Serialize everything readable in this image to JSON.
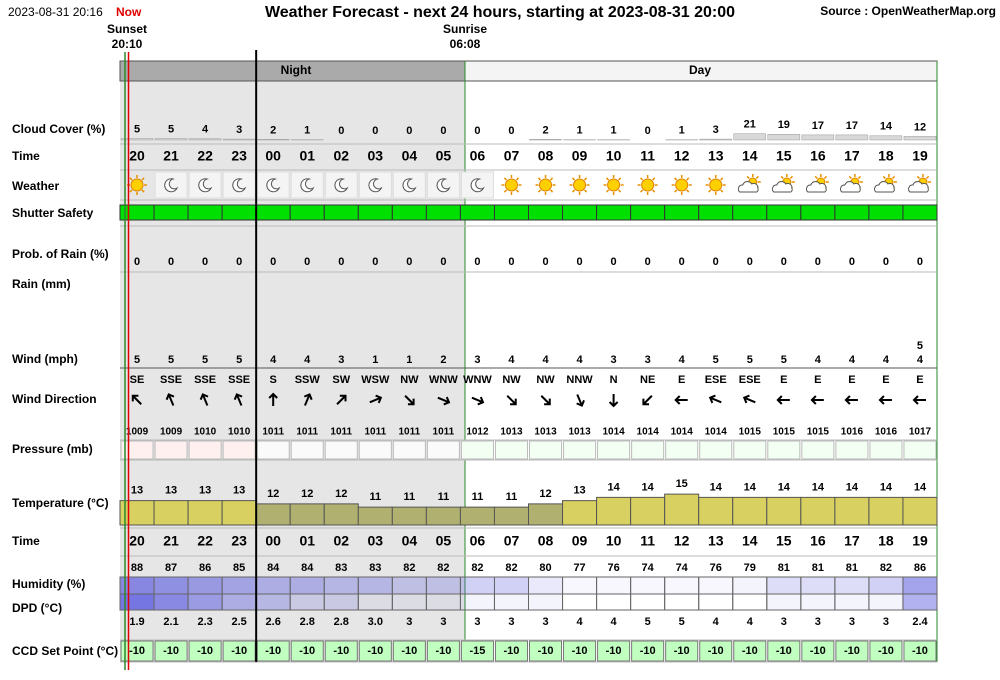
{
  "header": {
    "datetime": "2023-08-31 20:16",
    "now": "Now",
    "title": "Weather Forecast - next 24 hours, starting at 2023-08-31 20:00",
    "source": "Source : OpenWeatherMap.org"
  },
  "sun": {
    "sunset_label": "Sunset",
    "sunset_time": "20:10",
    "sunrise_label": "Sunrise",
    "sunrise_time": "06:08"
  },
  "periods": {
    "night": "Night",
    "day": "Day"
  },
  "row_labels": {
    "cloud_cover": "Cloud Cover (%)",
    "time": "Time",
    "weather": "Weather",
    "shutter_safety": "Shutter Safety",
    "prob_rain": "Prob. of Rain (%)",
    "rain": "Rain (mm)",
    "wind": "Wind (mph)",
    "wind_direction": "Wind Direction",
    "pressure": "Pressure (mb)",
    "temperature": "Temperature (°C)",
    "time_bottom": "Time",
    "humidity": "Humidity (%)",
    "dpd": "DPD (°C)",
    "ccd_set_point": "CCD Set Point (°C)"
  },
  "hours": [
    "20",
    "21",
    "22",
    "23",
    "00",
    "01",
    "02",
    "03",
    "04",
    "05",
    "06",
    "07",
    "08",
    "09",
    "10",
    "11",
    "12",
    "13",
    "14",
    "15",
    "16",
    "17",
    "18",
    "19"
  ],
  "cloud_cover": [
    5,
    5,
    4,
    3,
    2,
    1,
    0,
    0,
    0,
    0,
    0,
    0,
    2,
    1,
    1,
    0,
    1,
    3,
    21,
    19,
    17,
    17,
    14,
    12
  ],
  "prob_rain": [
    0,
    0,
    0,
    0,
    0,
    0,
    0,
    0,
    0,
    0,
    0,
    0,
    0,
    0,
    0,
    0,
    0,
    0,
    0,
    0,
    0,
    0,
    0,
    0
  ],
  "wind": [
    5,
    5,
    5,
    5,
    4,
    4,
    3,
    1,
    1,
    2,
    3,
    4,
    4,
    4,
    3,
    3,
    4,
    5,
    5,
    5,
    4,
    4,
    4,
    4
  ],
  "wind_upper": [
    null,
    null,
    null,
    null,
    null,
    null,
    null,
    null,
    null,
    null,
    null,
    null,
    null,
    null,
    null,
    null,
    null,
    null,
    null,
    null,
    null,
    null,
    null,
    5
  ],
  "wind_direction": [
    "SE",
    "SSE",
    "SSE",
    "SSE",
    "S",
    "SSW",
    "SW",
    "WSW",
    "NW",
    "WNW",
    "WNW",
    "NW",
    "NW",
    "NNW",
    "N",
    "NE",
    "E",
    "ESE",
    "ESE",
    "E",
    "E",
    "E",
    "E",
    "E"
  ],
  "pressure": [
    1009,
    1009,
    1010,
    1010,
    1011,
    1011,
    1011,
    1011,
    1011,
    1011,
    1012,
    1013,
    1013,
    1013,
    1014,
    1014,
    1014,
    1014,
    1015,
    1015,
    1015,
    1016,
    1016,
    1017
  ],
  "temperature": [
    13,
    13,
    13,
    13,
    12,
    12,
    12,
    11,
    11,
    11,
    11,
    11,
    12,
    13,
    14,
    14,
    15,
    14,
    14,
    14,
    14,
    14,
    14,
    14
  ],
  "humidity": [
    88,
    87,
    86,
    85,
    84,
    84,
    83,
    83,
    82,
    82,
    82,
    82,
    80,
    77,
    76,
    74,
    74,
    76,
    79,
    81,
    81,
    81,
    82,
    86
  ],
  "dpd": [
    "1.9",
    "2.1",
    "2.3",
    "2.5",
    "2.6",
    "2.8",
    "2.8",
    "3.0",
    "3",
    "3",
    "3",
    "3",
    "3",
    "4",
    "4",
    "5",
    "5",
    "4",
    "4",
    "3",
    "3",
    "3",
    "3",
    "2.4"
  ],
  "ccd_set_point": [
    -10,
    -10,
    -10,
    -10,
    -10,
    -10,
    -10,
    -10,
    -10,
    -10,
    -15,
    -10,
    -10,
    -10,
    -10,
    -10,
    -10,
    -10,
    -10,
    -10,
    -10,
    -10,
    -10,
    -10
  ]
}
